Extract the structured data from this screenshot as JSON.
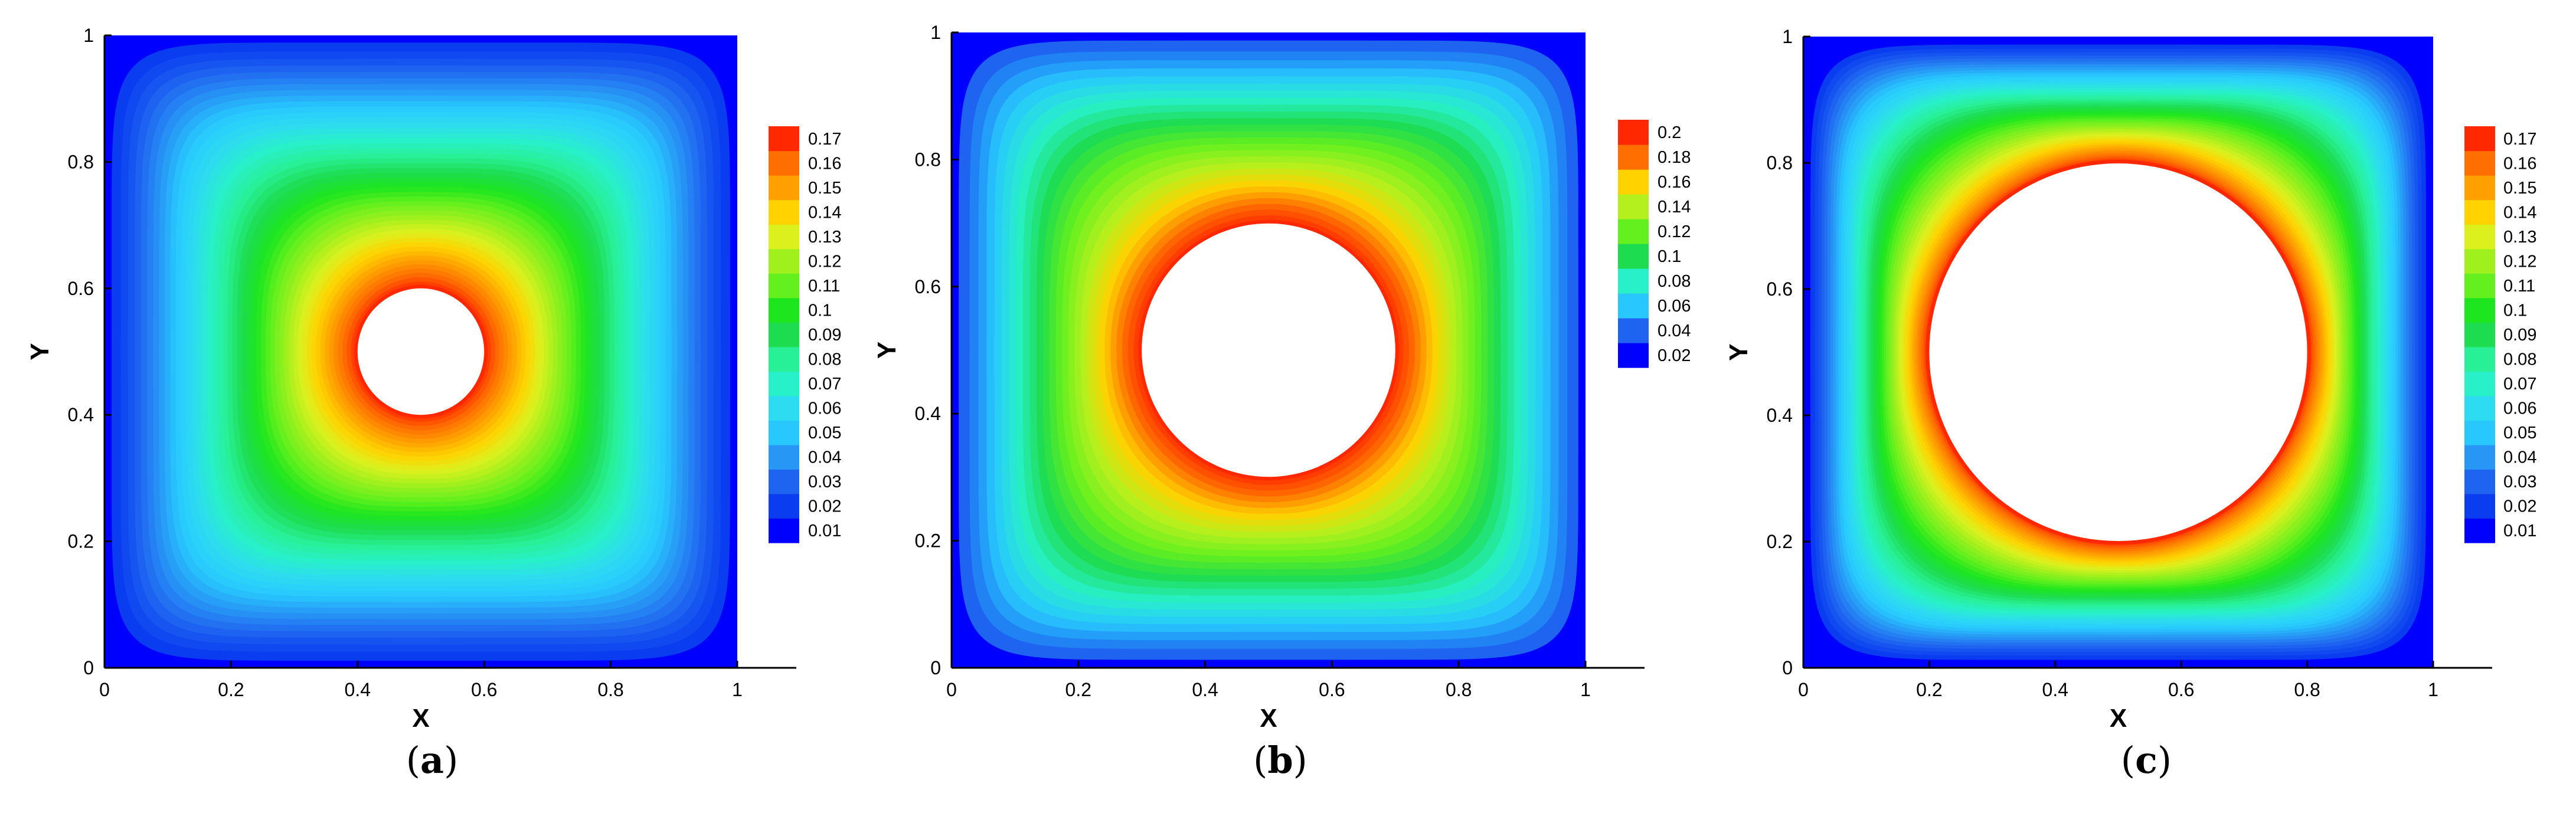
{
  "chart_data": [
    {
      "type": "contour",
      "panel_label": "a",
      "xlabel": "X",
      "ylabel": "Y",
      "xlim": [
        0,
        1
      ],
      "ylim": [
        0,
        1
      ],
      "x_ticks": [
        "0",
        "0.2",
        "0.4",
        "0.6",
        "0.8",
        "1"
      ],
      "y_ticks": [
        "0",
        "0.2",
        "0.4",
        "0.6",
        "0.8",
        "1"
      ],
      "hole": {
        "center": [
          0.5,
          0.5
        ],
        "radius": 0.1
      },
      "levels": [
        0.01,
        0.02,
        0.03,
        0.04,
        0.05,
        0.06,
        0.07,
        0.08,
        0.09,
        0.1,
        0.11,
        0.12,
        0.13,
        0.14,
        0.15,
        0.16,
        0.17
      ],
      "level_labels": [
        "0.01",
        "0.02",
        "0.03",
        "0.04",
        "0.05",
        "0.06",
        "0.07",
        "0.08",
        "0.09",
        "0.1",
        "0.11",
        "0.12",
        "0.13",
        "0.14",
        "0.15",
        "0.16",
        "0.17"
      ],
      "legend": "right",
      "colormap": [
        "#0000ff",
        "#0a3cf0",
        "#1e64f0",
        "#2896f5",
        "#28c8ff",
        "#2ddcf0",
        "#28f0c8",
        "#28f096",
        "#1edc50",
        "#1ee61e",
        "#64f01e",
        "#a0f01e",
        "#dcf01e",
        "#ffd200",
        "#ffa000",
        "#ff6e00",
        "#ff2800"
      ]
    },
    {
      "type": "contour",
      "panel_label": "b",
      "xlabel": "X",
      "ylabel": "Y",
      "xlim": [
        0,
        1
      ],
      "ylim": [
        0,
        1
      ],
      "x_ticks": [
        "0",
        "0.2",
        "0.4",
        "0.6",
        "0.8",
        "1"
      ],
      "y_ticks": [
        "0",
        "0.2",
        "0.4",
        "0.6",
        "0.8",
        "1"
      ],
      "hole": {
        "center": [
          0.5,
          0.5
        ],
        "radius": 0.2
      },
      "levels": [
        0.02,
        0.04,
        0.06,
        0.08,
        0.1,
        0.12,
        0.14,
        0.16,
        0.18,
        0.2
      ],
      "level_labels": [
        "0.02",
        "0.04",
        "0.06",
        "0.08",
        "0.1",
        "0.12",
        "0.14",
        "0.16",
        "0.18",
        "0.2"
      ],
      "legend": "right",
      "colormap": [
        "#0000ff",
        "#1e64f0",
        "#28c8ff",
        "#28f0c8",
        "#1edc50",
        "#64f01e",
        "#b4f01e",
        "#ffd200",
        "#ff6e00",
        "#ff2800"
      ]
    },
    {
      "type": "contour",
      "panel_label": "c",
      "xlabel": "X",
      "ylabel": "Y",
      "xlim": [
        0,
        1
      ],
      "ylim": [
        0,
        1
      ],
      "x_ticks": [
        "0",
        "0.2",
        "0.4",
        "0.6",
        "0.8",
        "1"
      ],
      "y_ticks": [
        "0",
        "0.2",
        "0.4",
        "0.6",
        "0.8",
        "1"
      ],
      "hole": {
        "center": [
          0.5,
          0.5
        ],
        "radius": 0.3
      },
      "levels": [
        0.01,
        0.02,
        0.03,
        0.04,
        0.05,
        0.06,
        0.07,
        0.08,
        0.09,
        0.1,
        0.11,
        0.12,
        0.13,
        0.14,
        0.15,
        0.16,
        0.17
      ],
      "level_labels": [
        "0.01",
        "0.02",
        "0.03",
        "0.04",
        "0.05",
        "0.06",
        "0.07",
        "0.08",
        "0.09",
        "0.1",
        "0.11",
        "0.12",
        "0.13",
        "0.14",
        "0.15",
        "0.16",
        "0.17"
      ],
      "legend": "right",
      "colormap": [
        "#0000ff",
        "#0a3cf0",
        "#1e64f0",
        "#2896f5",
        "#28c8ff",
        "#2ddcf0",
        "#28f0c8",
        "#28f096",
        "#1edc50",
        "#1ee61e",
        "#64f01e",
        "#a0f01e",
        "#dcf01e",
        "#ffd200",
        "#ffa000",
        "#ff6e00",
        "#ff2800"
      ]
    }
  ],
  "captions": [
    {
      "open": "(",
      "letter": "a",
      "close": ")"
    },
    {
      "open": "(",
      "letter": "b",
      "close": ")"
    },
    {
      "open": "(",
      "letter": "c",
      "close": ")"
    }
  ]
}
